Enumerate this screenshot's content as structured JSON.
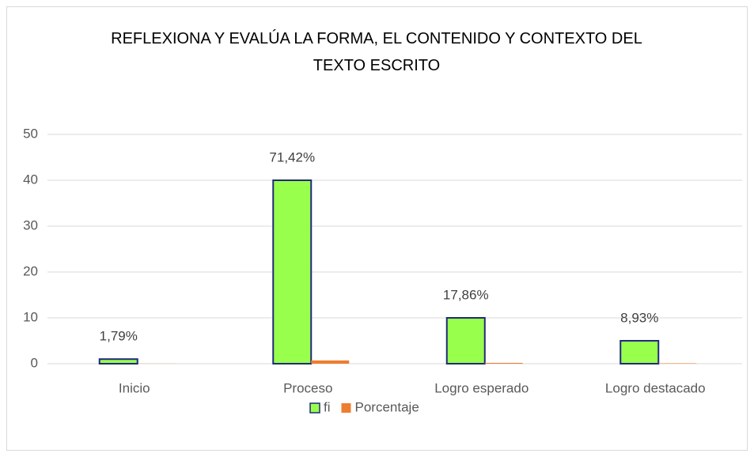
{
  "chart_data": {
    "type": "bar",
    "title": "REFLEXIONA Y EVALÚA LA FORMA, EL CONTENIDO Y CONTEXTO DEL TEXTO ESCRITO",
    "categories": [
      "Inicio",
      "Proceso",
      "Logro esperado",
      "Logro destacado"
    ],
    "series": [
      {
        "name": "fi",
        "color": "#99ff4d",
        "values": [
          1,
          40,
          10,
          5
        ]
      },
      {
        "name": "Porcentaje",
        "color": "#ed7d31",
        "values": [
          0.0179,
          0.7142,
          0.1786,
          0.0893
        ],
        "value_labels": [
          "1,79%",
          "71,42%",
          "17,86%",
          "8,93%"
        ]
      }
    ],
    "ylim": [
      0,
      50
    ],
    "yticks": [
      0,
      10,
      20,
      30,
      40,
      50
    ],
    "grid": true,
    "legend": "bottom"
  }
}
